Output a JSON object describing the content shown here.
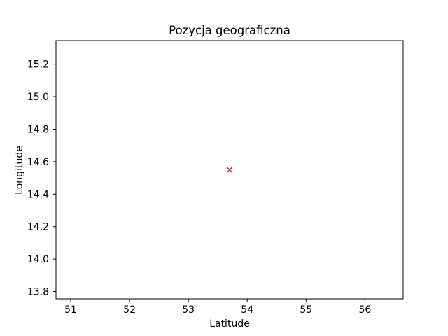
{
  "chart_data": {
    "type": "scatter",
    "title": "Pozycja geograficzna",
    "xlabel": "Latitude",
    "ylabel": "Longitude",
    "xlim": [
      50.75,
      56.65
    ],
    "ylim": [
      13.755,
      15.345
    ],
    "xticks": [
      51,
      52,
      53,
      54,
      55,
      56
    ],
    "yticks": [
      13.8,
      14.0,
      14.2,
      14.4,
      14.6,
      14.8,
      15.0,
      15.2
    ],
    "grid": false,
    "series": [
      {
        "marker": "x",
        "color": "#d62728",
        "points": [
          {
            "x": 53.7,
            "y": 14.55
          }
        ]
      }
    ]
  }
}
